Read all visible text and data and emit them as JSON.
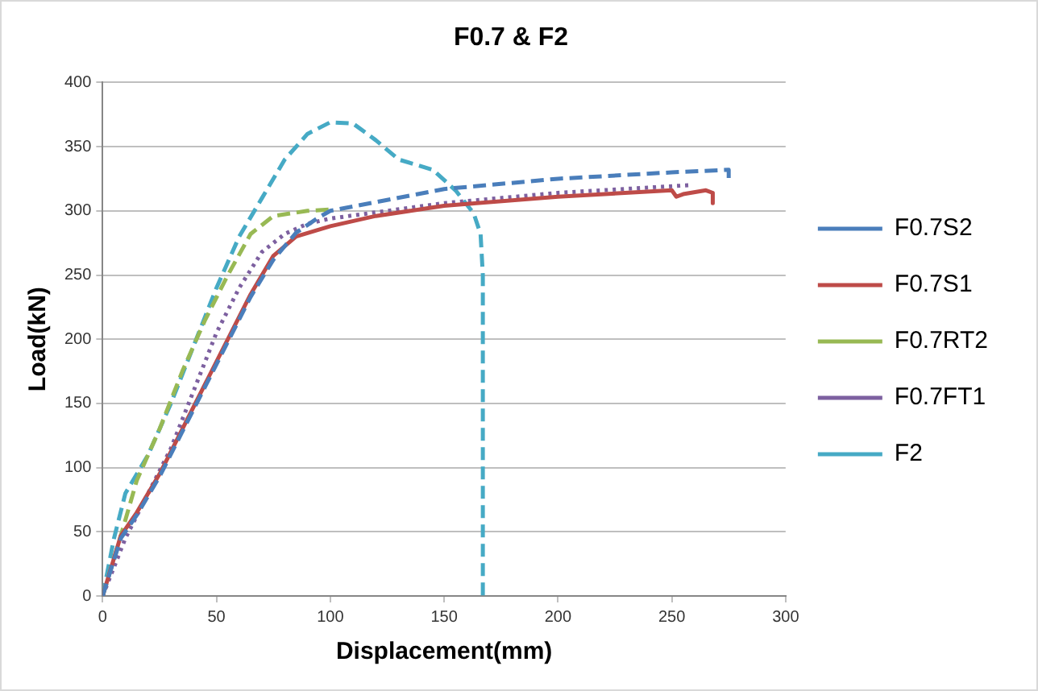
{
  "chart_data": {
    "type": "line",
    "title": "F0.7 & F2",
    "xlabel": "Displacement(mm)",
    "ylabel": "Load(kN)",
    "xlim": [
      0,
      300
    ],
    "xticks": [
      0,
      50,
      100,
      150,
      200,
      250,
      300
    ],
    "ylim": [
      0,
      400
    ],
    "yticks": [
      0,
      50,
      100,
      150,
      200,
      250,
      300,
      350,
      400
    ],
    "grid": "y",
    "legend": "right",
    "marker": "none",
    "series": [
      {
        "name": "F0.7S2",
        "color": "#4a7ebb",
        "line_style": "dashed",
        "x": [
          0,
          8,
          15,
          25,
          35,
          45,
          55,
          65,
          75,
          85,
          95,
          100,
          150,
          200,
          250,
          275,
          275
        ],
        "values": [
          0,
          45,
          63,
          93,
          128,
          163,
          198,
          233,
          262,
          283,
          295,
          300,
          317,
          325,
          330,
          332,
          325
        ]
      },
      {
        "name": "F0.7S1",
        "color": "#be4b48",
        "line_style": "solid",
        "x": [
          0,
          8,
          15,
          25,
          35,
          45,
          55,
          65,
          75,
          85,
          100,
          120,
          150,
          200,
          250,
          252,
          255,
          265,
          268,
          268
        ],
        "values": [
          0,
          47,
          65,
          95,
          130,
          165,
          200,
          235,
          265,
          280,
          288,
          296,
          304,
          311,
          316,
          311,
          313,
          316,
          314,
          306
        ]
      },
      {
        "name": "F0.7RT2",
        "color": "#98b954",
        "line_style": "dashed",
        "x": [
          0,
          8,
          15,
          25,
          35,
          45,
          55,
          65,
          75,
          90,
          100
        ],
        "values": [
          0,
          47,
          90,
          130,
          175,
          215,
          250,
          282,
          296,
          300,
          301
        ]
      },
      {
        "name": "F0.7FT1",
        "color": "#7d60a0",
        "line_style": "dotted",
        "x": [
          0,
          10,
          20,
          30,
          40,
          50,
          60,
          70,
          80,
          90,
          100,
          150,
          200,
          258
        ],
        "values": [
          0,
          45,
          80,
          115,
          160,
          205,
          240,
          268,
          282,
          290,
          294,
          306,
          314,
          320
        ]
      },
      {
        "name": "F2",
        "color": "#46aac5",
        "line_style": "dashed",
        "x": [
          0,
          5,
          10,
          20,
          30,
          40,
          50,
          60,
          70,
          80,
          90,
          100,
          110,
          120,
          130,
          145,
          155,
          163,
          166,
          167,
          167
        ],
        "values": [
          0,
          45,
          80,
          110,
          150,
          195,
          240,
          280,
          310,
          340,
          360,
          369,
          368,
          355,
          340,
          332,
          316,
          298,
          282,
          250,
          0
        ]
      }
    ]
  }
}
